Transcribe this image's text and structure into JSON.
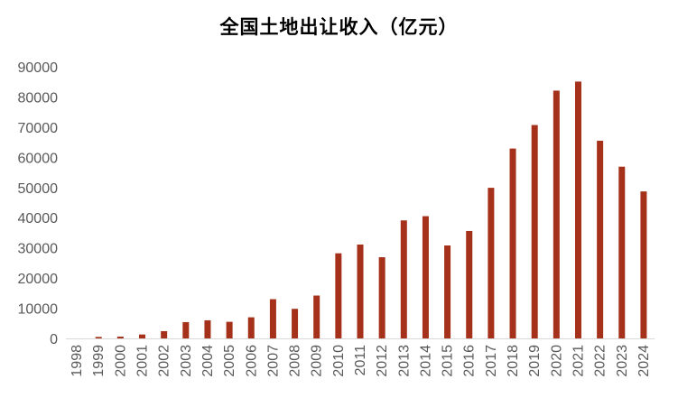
{
  "chart_data": {
    "type": "bar",
    "title": "全国土地出让收入（亿元）",
    "xlabel": "",
    "ylabel": "",
    "ylim": [
      0,
      90000
    ],
    "yticks": [
      0,
      10000,
      20000,
      30000,
      40000,
      50000,
      60000,
      70000,
      80000,
      90000
    ],
    "grid": false,
    "legend": "none",
    "bar_color": "#a5311a",
    "categories": [
      "1998",
      "1999",
      "2000",
      "2001",
      "2002",
      "2003",
      "2004",
      "2005",
      "2006",
      "2007",
      "2008",
      "2009",
      "2010",
      "2011",
      "2012",
      "2013",
      "2014",
      "2015",
      "2016",
      "2017",
      "2018",
      "2019",
      "2020",
      "2021",
      "2022",
      "2023",
      "2024"
    ],
    "values": [
      0,
      500,
      600,
      1300,
      2400,
      5400,
      6000,
      5500,
      7000,
      13000,
      9800,
      14200,
      28200,
      31100,
      26900,
      39100,
      40500,
      30800,
      35600,
      49900,
      62900,
      70700,
      82100,
      85100,
      65500,
      56900,
      48700
    ]
  }
}
